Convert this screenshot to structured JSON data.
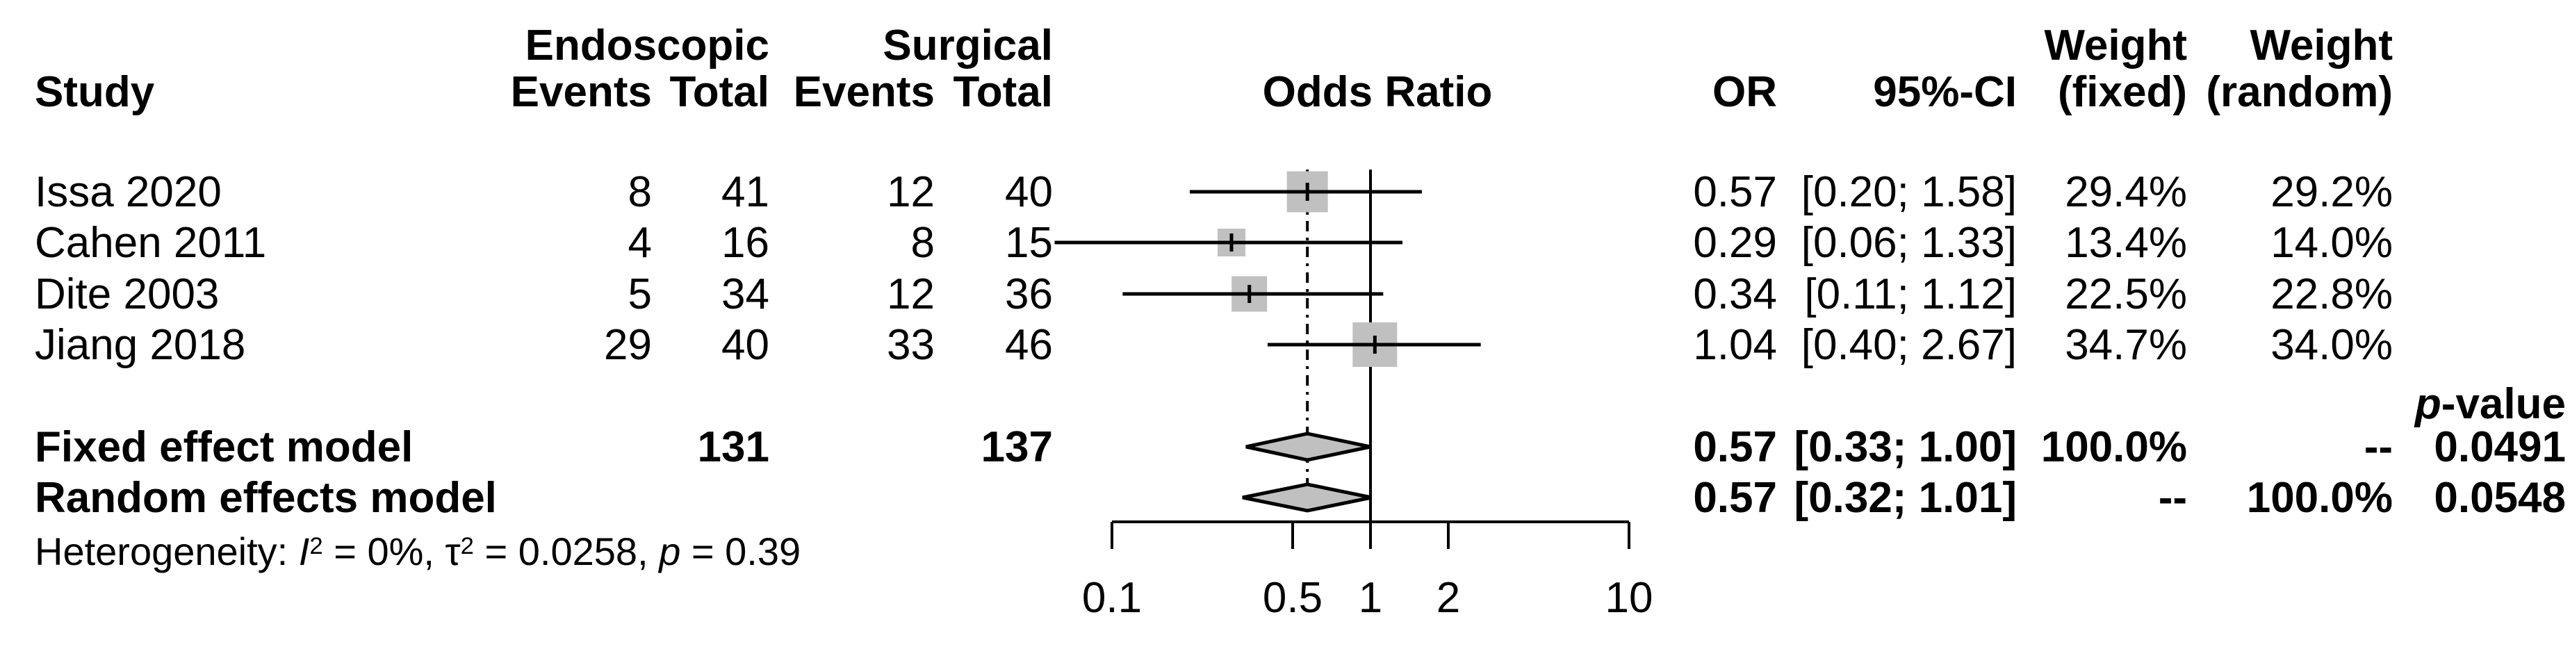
{
  "figure_title": "Forest plot: Endoscopic vs Surgical, Odds Ratio meta-analysis",
  "headers": {
    "study": "Study",
    "group_endoscopic": "Endoscopic",
    "group_surgical": "Surgical",
    "endo_events": "Events",
    "endo_total": "Total",
    "surg_events": "Events",
    "surg_total": "Total",
    "plot_title": "Odds Ratio",
    "or": "OR",
    "ci": "95%-CI",
    "weight_word_fixed": "Weight",
    "weight_word_random": "Weight",
    "weight_fixed": "(fixed)",
    "weight_random": "(random)",
    "pvalue_p": "p",
    "pvalue_rest": "-value"
  },
  "studies": [
    {
      "name": "Issa 2020",
      "e_events": "8",
      "e_total": "41",
      "s_events": "12",
      "s_total": "40",
      "or": "0.57",
      "ci": "[0.20; 1.58]",
      "w_fixed": "29.4%",
      "w_random": "29.2%"
    },
    {
      "name": "Cahen 2011",
      "e_events": "4",
      "e_total": "16",
      "s_events": "8",
      "s_total": "15",
      "or": "0.29",
      "ci": "[0.06; 1.33]",
      "w_fixed": "13.4%",
      "w_random": "14.0%"
    },
    {
      "name": "Dite 2003",
      "e_events": "5",
      "e_total": "34",
      "s_events": "12",
      "s_total": "36",
      "or": "0.34",
      "ci": "[0.11; 1.12]",
      "w_fixed": "22.5%",
      "w_random": "22.8%"
    },
    {
      "name": "Jiang 2018",
      "e_events": "29",
      "e_total": "40",
      "s_events": "33",
      "s_total": "46",
      "or": "1.04",
      "ci": "[0.40; 2.67]",
      "w_fixed": "34.7%",
      "w_random": "34.0%"
    }
  ],
  "summary_rows": [
    {
      "name": "Fixed effect model",
      "e_total": "131",
      "s_total": "137",
      "or": "0.57",
      "ci": "[0.33; 1.00]",
      "w_fixed": "100.0%",
      "w_random": "--",
      "p": "0.0491"
    },
    {
      "name": "Random effects model",
      "e_total": "",
      "s_total": "",
      "or": "0.57",
      "ci": "[0.32; 1.01]",
      "w_fixed": "--",
      "w_random": "100.0%",
      "p": "0.0548"
    }
  ],
  "heterogeneity": {
    "prefix": "Heterogeneity: ",
    "i_sym": "I",
    "i_sup": "2",
    "mid1": " = 0%, ",
    "tau_sym": "τ",
    "tau_sup": "2",
    "mid2": " = 0.0258, ",
    "p_sym": "p",
    "end": " = 0.39"
  },
  "chart_data": {
    "type": "forest",
    "x_scale": "log10",
    "x_ticks": [
      0.1,
      0.5,
      1,
      2,
      10
    ],
    "x_tick_labels": [
      "0.1",
      "0.5",
      "1",
      "2",
      "10"
    ],
    "xlim": [
      0.1,
      10
    ],
    "reference_line": 1.0,
    "pooled_effect_line": 0.57,
    "grid": false,
    "studies": [
      {
        "label": "Issa 2020",
        "or": 0.57,
        "ci_low": 0.2,
        "ci_high": 1.58,
        "weight_fixed_pct": 29.4,
        "weight_random_pct": 29.2
      },
      {
        "label": "Cahen 2011",
        "or": 0.29,
        "ci_low": 0.06,
        "ci_high": 1.33,
        "weight_fixed_pct": 13.4,
        "weight_random_pct": 14.0
      },
      {
        "label": "Dite 2003",
        "or": 0.34,
        "ci_low": 0.11,
        "ci_high": 1.12,
        "weight_fixed_pct": 22.5,
        "weight_random_pct": 22.8
      },
      {
        "label": "Jiang 2018",
        "or": 1.04,
        "ci_low": 0.4,
        "ci_high": 2.67,
        "weight_fixed_pct": 34.7,
        "weight_random_pct": 34.0
      }
    ],
    "summaries": [
      {
        "label": "Fixed effect model",
        "or": 0.57,
        "ci_low": 0.33,
        "ci_high": 1.0,
        "p_value": 0.0491
      },
      {
        "label": "Random effects model",
        "or": 0.57,
        "ci_low": 0.32,
        "ci_high": 1.01,
        "p_value": 0.0548
      }
    ],
    "heterogeneity": {
      "I2_pct": 0,
      "tau2": 0.0258,
      "p": 0.39
    },
    "colors": {
      "marker_fill": "#c0c0c0",
      "line": "#000000",
      "background": "#ffffff"
    }
  }
}
